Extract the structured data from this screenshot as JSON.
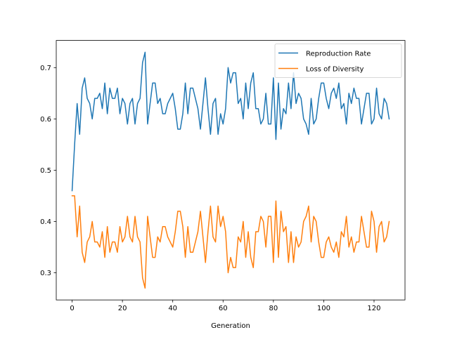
{
  "chart_data": {
    "type": "line",
    "title": "",
    "xlabel": "Generation",
    "ylabel": "",
    "xlim": [
      -6.3,
      132.3
    ],
    "ylim": [
      0.247,
      0.753
    ],
    "xticks": [
      0,
      20,
      40,
      60,
      80,
      100,
      120
    ],
    "yticks": [
      0.3,
      0.4,
      0.5,
      0.6,
      0.7
    ],
    "ytick_labels": [
      "0.3",
      "0.4",
      "0.5",
      "0.6",
      "0.7"
    ],
    "grid": false,
    "legend_position": "top-right",
    "x": [
      0,
      1,
      2,
      3,
      4,
      5,
      6,
      7,
      8,
      9,
      10,
      11,
      12,
      13,
      14,
      15,
      16,
      17,
      18,
      19,
      20,
      21,
      22,
      23,
      24,
      25,
      26,
      27,
      28,
      29,
      30,
      31,
      32,
      33,
      34,
      35,
      36,
      37,
      38,
      39,
      40,
      41,
      42,
      43,
      44,
      45,
      46,
      47,
      48,
      49,
      50,
      51,
      52,
      53,
      54,
      55,
      56,
      57,
      58,
      59,
      60,
      61,
      62,
      63,
      64,
      65,
      66,
      67,
      68,
      69,
      70,
      71,
      72,
      73,
      74,
      75,
      76,
      77,
      78,
      79,
      80,
      81,
      82,
      83,
      84,
      85,
      86,
      87,
      88,
      89,
      90,
      91,
      92,
      93,
      94,
      95,
      96,
      97,
      98,
      99,
      100,
      101,
      102,
      103,
      104,
      105,
      106,
      107,
      108,
      109,
      110,
      111,
      112,
      113,
      114,
      115,
      116,
      117,
      118,
      119,
      120,
      121,
      122,
      123,
      124,
      125,
      126
    ],
    "series": [
      {
        "name": "Reproduction Rate",
        "color": "#1f77b4",
        "values": [
          0.46,
          0.55,
          0.63,
          0.57,
          0.66,
          0.68,
          0.64,
          0.63,
          0.6,
          0.64,
          0.64,
          0.65,
          0.62,
          0.67,
          0.61,
          0.66,
          0.64,
          0.64,
          0.66,
          0.61,
          0.64,
          0.63,
          0.59,
          0.63,
          0.64,
          0.59,
          0.63,
          0.64,
          0.71,
          0.73,
          0.59,
          0.63,
          0.67,
          0.67,
          0.63,
          0.64,
          0.61,
          0.61,
          0.63,
          0.64,
          0.65,
          0.62,
          0.58,
          0.58,
          0.61,
          0.67,
          0.61,
          0.66,
          0.66,
          0.64,
          0.62,
          0.58,
          0.63,
          0.68,
          0.62,
          0.57,
          0.63,
          0.64,
          0.57,
          0.61,
          0.59,
          0.62,
          0.7,
          0.67,
          0.69,
          0.69,
          0.63,
          0.64,
          0.6,
          0.67,
          0.62,
          0.67,
          0.69,
          0.62,
          0.62,
          0.59,
          0.6,
          0.65,
          0.59,
          0.59,
          0.68,
          0.56,
          0.67,
          0.58,
          0.62,
          0.61,
          0.67,
          0.62,
          0.69,
          0.63,
          0.65,
          0.64,
          0.6,
          0.59,
          0.57,
          0.64,
          0.59,
          0.6,
          0.64,
          0.67,
          0.67,
          0.64,
          0.62,
          0.65,
          0.66,
          0.64,
          0.67,
          0.62,
          0.63,
          0.59,
          0.65,
          0.63,
          0.66,
          0.64,
          0.64,
          0.59,
          0.62,
          0.65,
          0.65,
          0.59,
          0.6,
          0.66,
          0.61,
          0.6,
          0.64,
          0.63,
          0.6
        ]
      },
      {
        "name": "Loss of Diversity",
        "color": "#ff7f0e",
        "values": [
          0.45,
          0.45,
          0.37,
          0.43,
          0.34,
          0.32,
          0.36,
          0.37,
          0.4,
          0.36,
          0.36,
          0.35,
          0.38,
          0.33,
          0.39,
          0.34,
          0.36,
          0.36,
          0.34,
          0.39,
          0.36,
          0.37,
          0.41,
          0.37,
          0.36,
          0.41,
          0.37,
          0.36,
          0.29,
          0.27,
          0.41,
          0.37,
          0.33,
          0.33,
          0.37,
          0.36,
          0.39,
          0.39,
          0.37,
          0.36,
          0.35,
          0.38,
          0.42,
          0.42,
          0.39,
          0.33,
          0.39,
          0.34,
          0.34,
          0.36,
          0.38,
          0.42,
          0.37,
          0.32,
          0.38,
          0.43,
          0.37,
          0.36,
          0.43,
          0.39,
          0.41,
          0.38,
          0.3,
          0.33,
          0.31,
          0.31,
          0.37,
          0.36,
          0.4,
          0.33,
          0.38,
          0.33,
          0.31,
          0.38,
          0.38,
          0.41,
          0.4,
          0.35,
          0.41,
          0.41,
          0.32,
          0.44,
          0.33,
          0.42,
          0.38,
          0.39,
          0.32,
          0.38,
          0.32,
          0.37,
          0.35,
          0.36,
          0.4,
          0.41,
          0.43,
          0.36,
          0.41,
          0.4,
          0.36,
          0.33,
          0.33,
          0.36,
          0.37,
          0.35,
          0.34,
          0.36,
          0.33,
          0.38,
          0.37,
          0.41,
          0.35,
          0.37,
          0.34,
          0.36,
          0.36,
          0.41,
          0.38,
          0.35,
          0.35,
          0.42,
          0.4,
          0.34,
          0.39,
          0.4,
          0.36,
          0.37,
          0.4
        ]
      }
    ]
  }
}
